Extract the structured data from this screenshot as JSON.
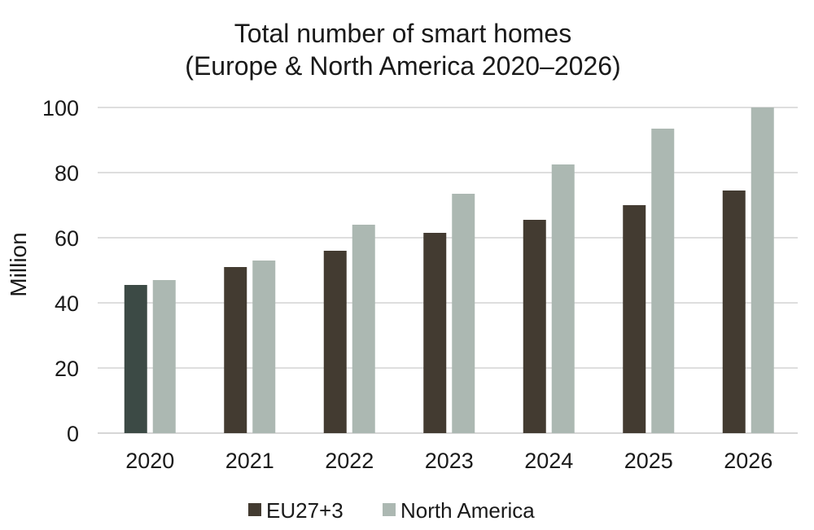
{
  "chart_data": {
    "type": "bar",
    "title_lines": [
      "Total number of smart homes",
      "(Europe & North America 2020–2026)"
    ],
    "xlabel": "",
    "ylabel": "Million",
    "ylim": [
      0,
      100
    ],
    "yticks": [
      0,
      20,
      40,
      60,
      80,
      100
    ],
    "grid": true,
    "legend_position": "bottom",
    "categories": [
      "2020",
      "2021",
      "2022",
      "2023",
      "2024",
      "2025",
      "2026"
    ],
    "series": [
      {
        "name": "EU27+3",
        "color": "#433b31",
        "values": [
          45.5,
          51,
          56,
          61.5,
          65.5,
          70,
          74.5
        ]
      },
      {
        "name": "North America",
        "color": "#acb8b2",
        "values": [
          47,
          53,
          64,
          73.5,
          82.5,
          93.5,
          100
        ]
      }
    ],
    "highlight": {
      "series_index": 0,
      "category_index": 0,
      "color": "#3c4a45"
    }
  }
}
